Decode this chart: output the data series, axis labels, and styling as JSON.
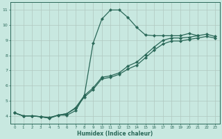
{
  "xlabel": "Humidex (Indice chaleur)",
  "xlim_min": -0.5,
  "xlim_max": 23.5,
  "ylim_min": 3.5,
  "ylim_max": 11.5,
  "xticks": [
    0,
    1,
    2,
    3,
    4,
    5,
    6,
    7,
    8,
    9,
    10,
    11,
    12,
    13,
    14,
    15,
    16,
    17,
    18,
    19,
    20,
    21,
    22,
    23
  ],
  "yticks": [
    4,
    5,
    6,
    7,
    8,
    9,
    10,
    11
  ],
  "background_color": "#c8e8e0",
  "grid_color": "#b0c8c0",
  "line_color": "#2a6858",
  "line1_x": [
    0,
    1,
    2,
    3,
    4,
    5,
    6,
    7,
    8,
    9,
    10,
    11,
    12,
    13,
    14,
    15,
    16,
    17,
    18,
    19,
    20,
    21,
    22,
    23
  ],
  "line1_y": [
    4.2,
    4.0,
    4.0,
    3.95,
    3.85,
    4.05,
    4.05,
    4.35,
    5.35,
    8.8,
    10.4,
    11.0,
    11.0,
    10.5,
    9.85,
    9.35,
    9.3,
    9.3,
    9.3,
    9.3,
    9.45,
    9.3,
    null,
    null
  ],
  "line2_x": [
    0,
    1,
    2,
    3,
    4,
    5,
    6,
    7,
    8,
    9,
    10,
    11,
    12,
    13,
    14,
    15,
    16,
    17,
    18,
    19,
    20,
    21,
    22,
    23
  ],
  "line2_y": [
    4.2,
    4.0,
    4.0,
    3.95,
    3.85,
    4.05,
    4.15,
    4.55,
    5.35,
    5.85,
    6.55,
    6.65,
    6.85,
    7.3,
    7.55,
    8.05,
    8.55,
    9.0,
    9.15,
    9.15,
    9.2,
    9.3,
    9.4,
    9.25
  ],
  "line3_x": [
    0,
    1,
    2,
    3,
    4,
    5,
    6,
    7,
    8,
    9,
    10,
    11,
    12,
    13,
    14,
    15,
    16,
    17,
    18,
    19,
    20,
    21,
    22,
    23
  ],
  "line3_y": [
    4.2,
    4.0,
    4.0,
    3.95,
    3.9,
    4.05,
    4.15,
    4.5,
    5.25,
    5.75,
    6.45,
    6.55,
    6.75,
    7.1,
    7.35,
    7.85,
    8.35,
    8.75,
    8.95,
    8.95,
    9.05,
    9.15,
    9.25,
    9.15
  ]
}
